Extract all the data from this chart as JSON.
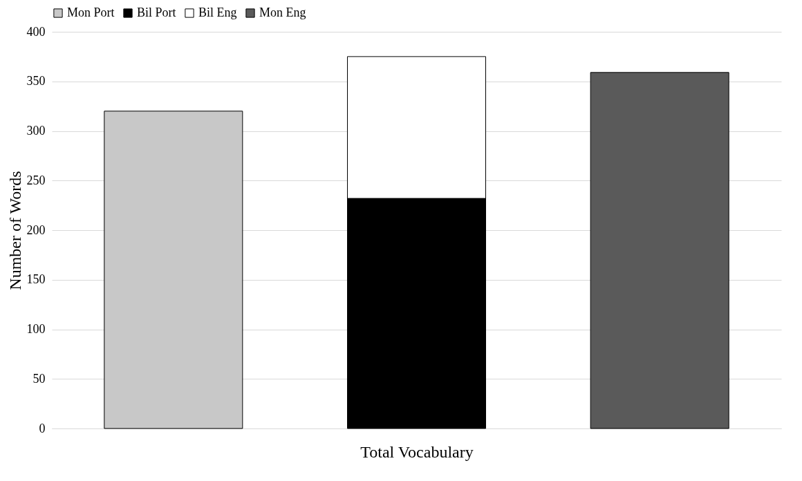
{
  "chart_data": {
    "type": "bar",
    "stacked": true,
    "xlabel": "Total Vocabulary",
    "ylabel": "Number of Words",
    "categories": [
      null,
      null,
      null
    ],
    "series": [
      {
        "name": "Mon Port",
        "color": "#c8c8c8",
        "values": [
          320,
          null,
          null
        ]
      },
      {
        "name": "Bil Port",
        "color": "#000000",
        "values": [
          null,
          232,
          null
        ]
      },
      {
        "name": "Bil Eng",
        "color": "#ffffff",
        "values": [
          null,
          143,
          null
        ]
      },
      {
        "name": "Mon Eng",
        "color": "#5a5a5a",
        "values": [
          null,
          null,
          359
        ]
      }
    ],
    "ylim": [
      0,
      400
    ],
    "yticks": [
      0,
      50,
      100,
      150,
      200,
      250,
      300,
      350,
      400
    ],
    "grid": "y",
    "legend": "top"
  }
}
